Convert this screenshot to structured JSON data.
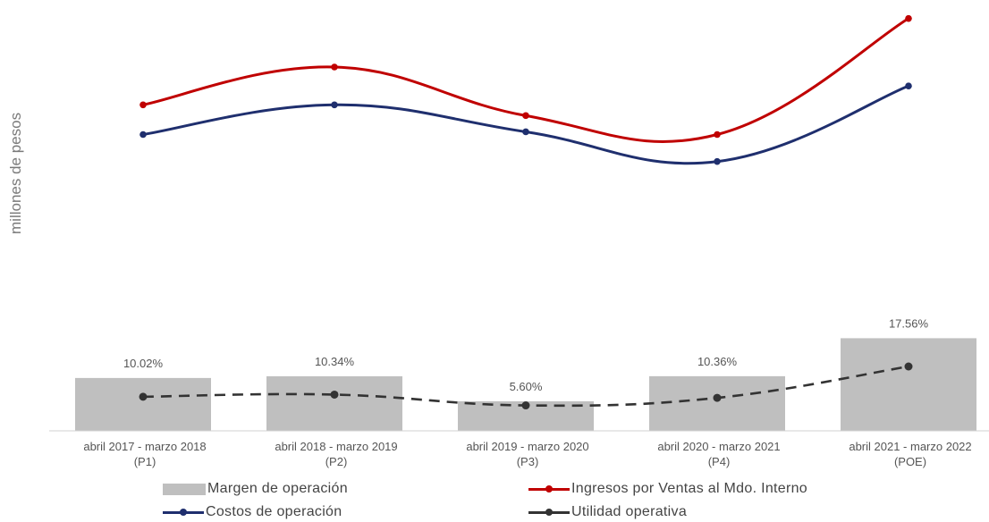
{
  "chart_data": {
    "type": "line+bar",
    "ylabel": "millones de pesos",
    "categories": [
      [
        "abril 2017 - marzo 2018",
        "(P1)"
      ],
      [
        "abril 2018 - marzo 2019",
        "(P2)"
      ],
      [
        "abril 2019 - marzo 2020",
        "(P3)"
      ],
      [
        "abril 2020 - marzo 2021",
        "(P4)"
      ],
      [
        "abril 2021 - marzo 2022",
        "(POE)"
      ]
    ],
    "lines": [
      {
        "name": "Ingresos por Ventas al Mdo. Interno",
        "color": "#c00000",
        "values": [
          86,
          100,
          82,
          75,
          118
        ],
        "smooth": true
      },
      {
        "name": "Costos de operación",
        "color": "#1f2f6e",
        "values": [
          75,
          86,
          76,
          65,
          93
        ],
        "smooth": true
      }
    ],
    "margin": {
      "name": "Margen de operación",
      "color": "#bfbfbf",
      "values": [
        10.02,
        10.34,
        5.6,
        10.36,
        17.56
      ],
      "labels": [
        "10.02%",
        "10.34%",
        "5.60%",
        "10.36%",
        "17.56%"
      ]
    },
    "utilidad": {
      "name": "Utilidad operativa",
      "color": "#333333",
      "dashed": true,
      "values": [
        11,
        12,
        7,
        10.5,
        25
      ]
    }
  },
  "legend": {
    "margen": "Margen de operación",
    "ingresos": "Ingresos por Ventas al Mdo. Interno",
    "costos": "Costos de operación",
    "utilidad": "Utilidad operativa"
  }
}
